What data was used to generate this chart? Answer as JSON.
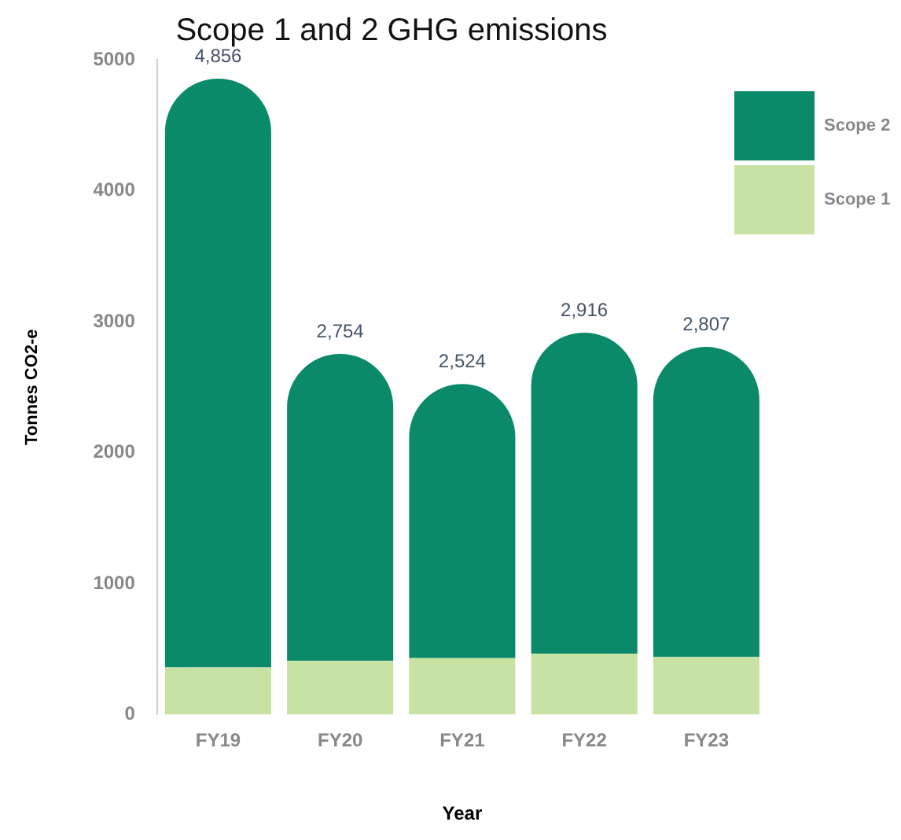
{
  "chart_data": {
    "type": "bar",
    "title": "Scope 1 and 2 GHG emissions",
    "xlabel": "Year",
    "ylabel": "Tonnes CO2-e",
    "categories": [
      "FY19",
      "FY20",
      "FY21",
      "FY22",
      "FY23"
    ],
    "series": [
      {
        "name": "Scope 1",
        "color": "#c8e2a4",
        "values": [
          360,
          410,
          430,
          465,
          440
        ]
      },
      {
        "name": "Scope 2",
        "color": "#0a8a6a",
        "values": [
          4496,
          2344,
          2094,
          2451,
          2367
        ]
      }
    ],
    "stacked": true,
    "totals": [
      "4,856",
      "2,754",
      "2,524",
      "2,916",
      "2,807"
    ],
    "ylim": [
      0,
      5000
    ],
    "yticks": [
      0,
      1000,
      2000,
      3000,
      4000,
      5000
    ],
    "grid": false,
    "legend": "top right"
  }
}
